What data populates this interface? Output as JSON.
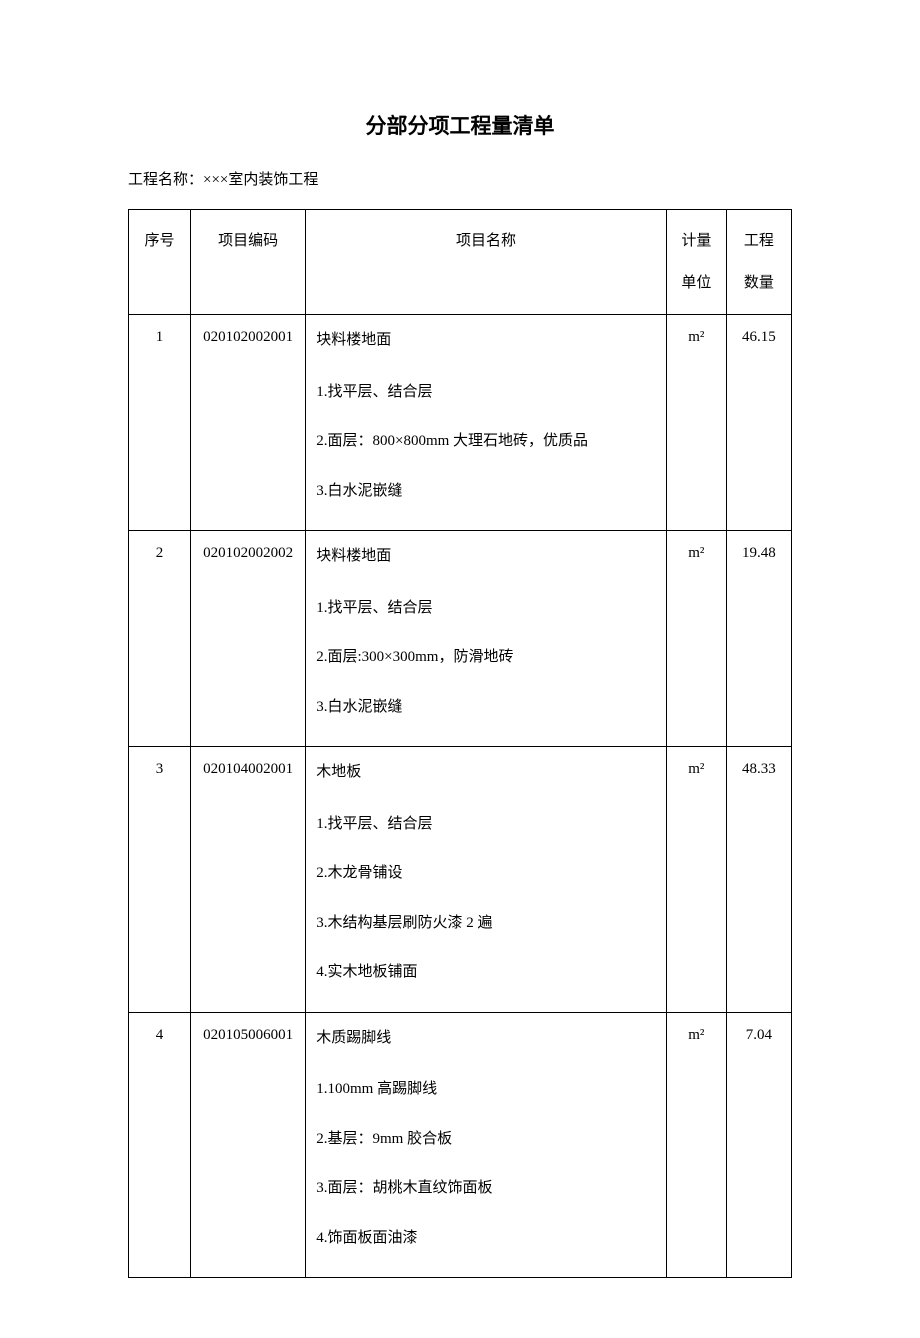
{
  "title": "分部分项工程量清单",
  "project_label": "工程名称：×××室内装饰工程",
  "columns": {
    "seq": "序号",
    "code": "项目编码",
    "name": "项目名称",
    "unit": "计量单位",
    "qty": "工程数量"
  },
  "rows": [
    {
      "seq": "1",
      "code": "020102002001",
      "name_lines": [
        "块料楼地面",
        "1.找平层、结合层",
        "2.面层：800×800mm 大理石地砖，优质品",
        "3.白水泥嵌缝"
      ],
      "unit": "m²",
      "qty": "46.15"
    },
    {
      "seq": "2",
      "code": "020102002002",
      "name_lines": [
        "块料楼地面",
        "1.找平层、结合层",
        "2.面层:300×300mm，防滑地砖",
        "3.白水泥嵌缝"
      ],
      "unit": "m²",
      "qty": "19.48"
    },
    {
      "seq": "3",
      "code": "020104002001",
      "name_lines": [
        "木地板",
        "1.找平层、结合层",
        "2.木龙骨铺设",
        "3.木结构基层刷防火漆 2 遍",
        "4.实木地板铺面"
      ],
      "unit": "m²",
      "qty": "48.33"
    },
    {
      "seq": "4",
      "code": "020105006001",
      "name_lines": [
        "木质踢脚线",
        "1.100mm 高踢脚线",
        "2.基层：9mm 胶合板",
        "3.面层：胡桃木直纹饰面板",
        "4.饰面板面油漆"
      ],
      "unit": "m²",
      "qty": "7.04"
    }
  ]
}
